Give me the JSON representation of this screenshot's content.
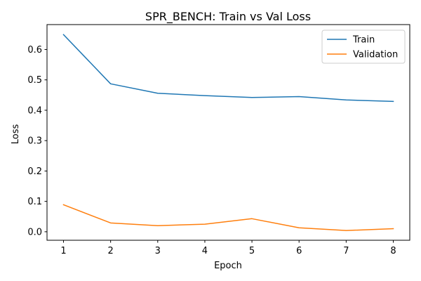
{
  "chart_data": {
    "type": "line",
    "title": "SPR_BENCH: Train vs Val Loss",
    "xlabel": "Epoch",
    "ylabel": "Loss",
    "x": [
      1,
      2,
      3,
      4,
      5,
      6,
      7,
      8
    ],
    "xlim": [
      0.65,
      8.35
    ],
    "ylim": [
      -0.028,
      0.682
    ],
    "xticks": [
      1,
      2,
      3,
      4,
      5,
      6,
      7,
      8
    ],
    "yticks": [
      0.0,
      0.1,
      0.2,
      0.3,
      0.4,
      0.5,
      0.6
    ],
    "ytick_labels": [
      "0.0",
      "0.1",
      "0.2",
      "0.3",
      "0.4",
      "0.5",
      "0.6"
    ],
    "grid": false,
    "legend_position": "top-right",
    "series": [
      {
        "name": "Train",
        "color": "#1f77b4",
        "values": [
          0.649,
          0.487,
          0.456,
          0.448,
          0.442,
          0.445,
          0.434,
          0.429
        ]
      },
      {
        "name": "Validation",
        "color": "#ff7f0e",
        "values": [
          0.089,
          0.029,
          0.02,
          0.025,
          0.043,
          0.013,
          0.004,
          0.01
        ]
      }
    ]
  }
}
